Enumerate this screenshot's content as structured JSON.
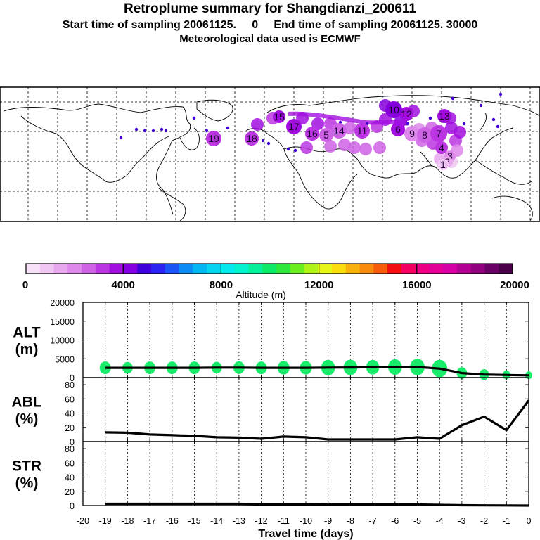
{
  "header": {
    "title": "Retroplume summary for Shangdianzi_200611",
    "subtitle": "Start time of sampling 20061125.     0     End time of sampling 20061125. 30000",
    "meteo": "Meteorological data used is ECMWF"
  },
  "colorbar": {
    "xlabel": "Altitude (m)",
    "tick_labels": [
      "0",
      "4000",
      "8000",
      "12000",
      "16000",
      "20000"
    ],
    "colors": [
      "#f7e1f7",
      "#f0c6f2",
      "#e8a8ee",
      "#dd88ea",
      "#cf63e6",
      "#bb35e2",
      "#a20ee0",
      "#8600de",
      "#3f00d8",
      "#2a25ee",
      "#1a56f6",
      "#0b8bf6",
      "#03b5f3",
      "#05d3f0",
      "#06e7ee",
      "#05f0cc",
      "#08ee9a",
      "#0eea66",
      "#2ce83a",
      "#6aef1e",
      "#aef21a",
      "#e8f51a",
      "#f9dc12",
      "#f9b00e",
      "#f98a0b",
      "#f75c08",
      "#f01010",
      "#f00060",
      "#ec0084",
      "#e00098",
      "#d300a6",
      "#b40092",
      "#920080",
      "#6a0066",
      "#4a0048"
    ]
  },
  "map_labels": [
    "19",
    "18",
    "17",
    "16",
    "15",
    "14",
    "13",
    "12",
    "11",
    "10",
    "9",
    "8",
    "7",
    "6",
    "5",
    "4",
    "3",
    "2",
    "1"
  ],
  "chart_data": [
    {
      "type": "line",
      "panel": "ALT",
      "ylabel": "ALT\n(m)",
      "x": [
        -19,
        -18,
        -17,
        -16,
        -15,
        -14,
        -13,
        -12,
        -11,
        -10,
        -9,
        -8,
        -7,
        -6,
        -5,
        -4,
        -3,
        -2,
        -1,
        0
      ],
      "series": [
        {
          "name": "altitude_mean",
          "values": [
            2600,
            2600,
            2600,
            2600,
            2600,
            2650,
            2650,
            2600,
            2600,
            2600,
            2650,
            2700,
            2750,
            2800,
            2800,
            2400,
            1200,
            800,
            700,
            600
          ]
        }
      ],
      "plume_sizes": [
        1.0,
        0.9,
        1.0,
        1.0,
        1.0,
        0.9,
        1.0,
        1.0,
        1.1,
        1.1,
        1.3,
        1.3,
        1.2,
        1.3,
        1.4,
        1.5,
        0.9,
        0.8,
        0.6,
        0.5
      ],
      "ylim": [
        0,
        20000
      ],
      "yticks": [
        0,
        5000,
        10000,
        15000,
        20000
      ]
    },
    {
      "type": "line",
      "panel": "ABL",
      "ylabel": "ABL\n(%)",
      "x": [
        -19,
        -18,
        -17,
        -16,
        -15,
        -14,
        -13,
        -12,
        -11,
        -10,
        -9,
        -8,
        -7,
        -6,
        -5,
        -4,
        -3,
        -2,
        -1,
        0
      ],
      "series": [
        {
          "name": "abl_fraction",
          "values": [
            13,
            12.5,
            10,
            9,
            8,
            6,
            5.5,
            4,
            7,
            6,
            3,
            3,
            3,
            3,
            6,
            4,
            23,
            35,
            16,
            58
          ]
        }
      ],
      "ylim": [
        0,
        90
      ],
      "yticks": [
        0,
        20,
        40,
        60,
        80
      ]
    },
    {
      "type": "line",
      "panel": "STR",
      "ylabel": "STR\n(%)",
      "xlabel": "Travel time (days)",
      "x": [
        -19,
        -18,
        -17,
        -16,
        -15,
        -14,
        -13,
        -12,
        -11,
        -10,
        -9,
        -8,
        -7,
        -6,
        -5,
        -4,
        -3,
        -2,
        -1,
        0
      ],
      "series": [
        {
          "name": "str_fraction",
          "values": [
            2.5,
            2.5,
            2.5,
            2.5,
            2.5,
            2.5,
            2.5,
            2,
            2,
            2,
            1.5,
            1.5,
            1.5,
            1.5,
            1.5,
            1,
            0.5,
            0.3,
            0.2,
            0
          ]
        }
      ],
      "ylim": [
        0,
        90
      ],
      "yticks": [
        0,
        20,
        40,
        60,
        80
      ],
      "xlim": [
        -20,
        0
      ],
      "xticks": [
        -20,
        -19,
        -18,
        -17,
        -16,
        -15,
        -14,
        -13,
        -12,
        -11,
        -10,
        -9,
        -8,
        -7,
        -6,
        -5,
        -4,
        -3,
        -2,
        -1,
        0
      ],
      "xtick_labels": [
        "-20",
        "-19",
        "-18",
        "-17",
        "-16",
        "-15",
        "-14",
        "-13",
        "-12",
        "-11",
        "-10",
        "-9",
        "-8",
        "-7",
        "-6",
        "-5",
        "-4",
        "-3",
        "-2",
        "-1",
        "0"
      ]
    }
  ]
}
